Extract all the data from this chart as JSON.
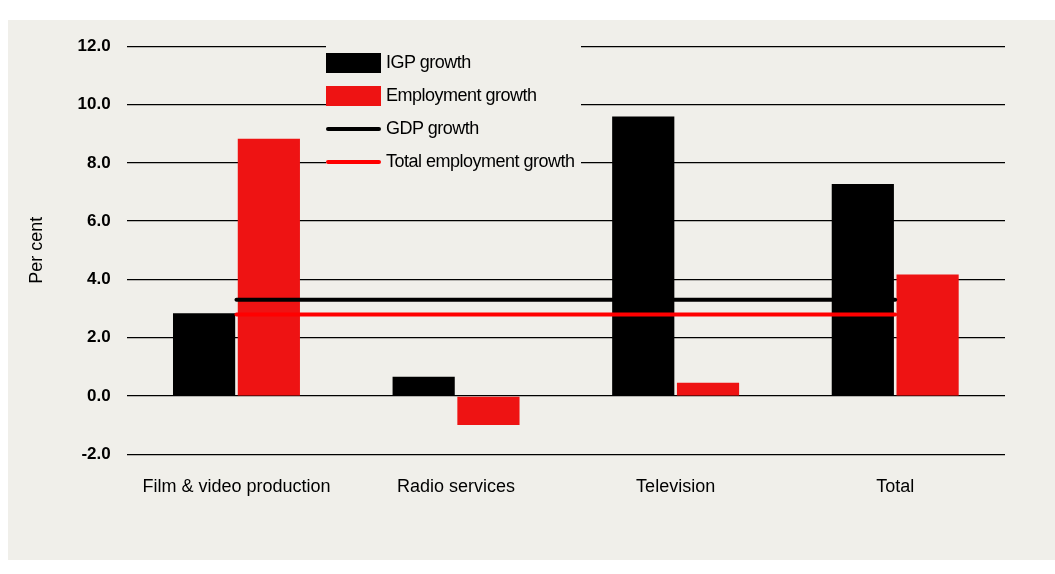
{
  "chart_data": {
    "type": "bar",
    "ylabel": "Per cent",
    "categories": [
      "Film & video production",
      "Radio services",
      "Television",
      "Total"
    ],
    "series": [
      {
        "name": "IGP growth",
        "color": "#000000",
        "values": [
          2.84,
          0.66,
          9.59,
          7.27
        ]
      },
      {
        "name": "Employment growth",
        "color": "#ee1313",
        "values": [
          8.83,
          -0.99,
          0.46,
          4.17
        ]
      },
      {
        "name": "GDP growth",
        "type": "line",
        "color": "#000000",
        "values": [
          3.3,
          3.3,
          3.3,
          3.3
        ]
      },
      {
        "name": "Total employment growth",
        "type": "line",
        "color": "#ff0000",
        "values": [
          2.8,
          2.8,
          2.8,
          2.8
        ]
      }
    ],
    "ylim": [
      -2,
      12
    ],
    "yticks": [
      {
        "value": -2,
        "label": "-2.0"
      },
      {
        "value": 0,
        "label": "0.0"
      },
      {
        "value": 2,
        "label": "2.0"
      },
      {
        "value": 4,
        "label": "4.0"
      },
      {
        "value": 6,
        "label": "6.0"
      },
      {
        "value": 8,
        "label": "8.0"
      },
      {
        "value": 10,
        "label": "10.0"
      },
      {
        "value": 12,
        "label": "12.0"
      }
    ],
    "grid": "y",
    "legend": "top",
    "marker": "none",
    "line_style": "solid"
  }
}
